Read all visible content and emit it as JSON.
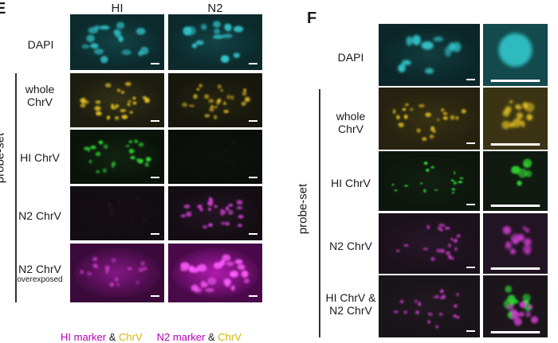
{
  "panel_e": {
    "letter": "E",
    "columns": [
      "HI",
      "N2"
    ],
    "side_label": "probe-set",
    "rows": [
      {
        "label": "DAPI",
        "sub": "",
        "color": "#31c6cc"
      },
      {
        "label": "whole ChrV",
        "sub": "",
        "color": "#e2c020"
      },
      {
        "label": "HI ChrV",
        "sub": "",
        "color": "#2fd432"
      },
      {
        "label": "N2 ChrV",
        "sub": "",
        "color": "#c83cc8"
      },
      {
        "label": "N2 ChrV",
        "sub": "overexposed",
        "color": "#e040e0"
      }
    ]
  },
  "panel_f": {
    "letter": "F",
    "side_label": "probe-set",
    "rows": [
      {
        "label": "DAPI",
        "color": "#31c6cc"
      },
      {
        "label": "whole ChrV",
        "color": "#e2c020"
      },
      {
        "label": "HI ChrV",
        "color": "#2fd432"
      },
      {
        "label": "N2 ChrV",
        "color": "#c83cc8"
      },
      {
        "label": "HI ChrV & N2 ChrV",
        "color": "#c83cc8"
      }
    ]
  },
  "legend": {
    "hi_marker": "HI marker",
    "amp1": "&",
    "chrv1": "ChrV",
    "n2_marker": "N2 marker",
    "amp2": "&",
    "chrv2": "ChrV"
  }
}
